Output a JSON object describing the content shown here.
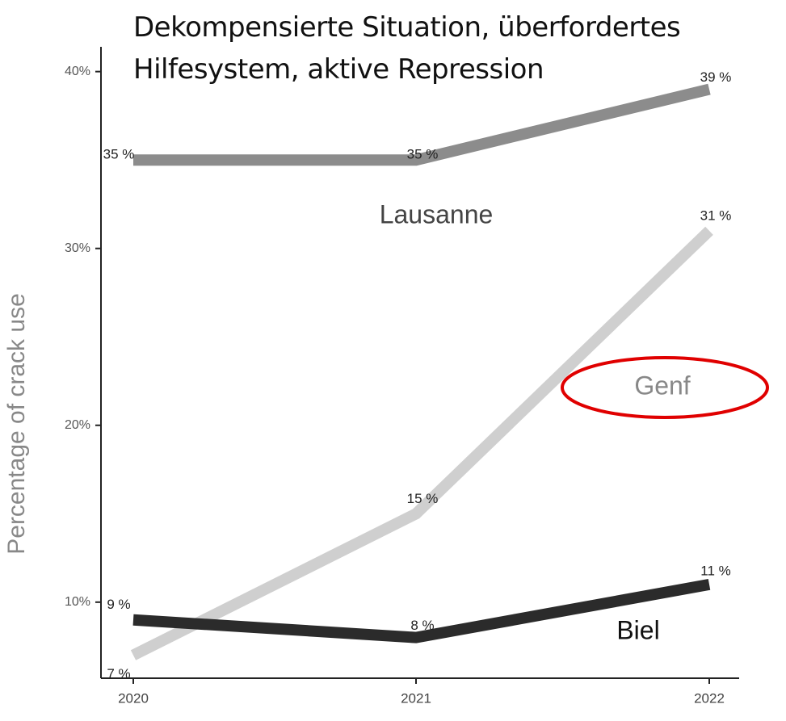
{
  "chart_data": {
    "type": "line",
    "title": "Dekompensierte Situation, überfordertes Hilfesystem, aktive Repression",
    "y_label": "Percentage of crack use",
    "categories": [
      "2020",
      "2021",
      "2022"
    ],
    "series": [
      {
        "name": "Lausanne",
        "color": "#8c8c8c",
        "values": [
          35,
          35,
          39
        ],
        "value_labels": [
          "35 %",
          "35 %",
          "39 %"
        ]
      },
      {
        "name": "Genf",
        "color": "#cfcfcf",
        "values": [
          7,
          15,
          31
        ],
        "value_labels": [
          "7 %",
          "15 %",
          "31 %"
        ]
      },
      {
        "name": "Biel",
        "color": "#2b2b2b",
        "values": [
          9,
          8,
          11
        ],
        "value_labels": [
          "9 %",
          "8 %",
          "11 %"
        ]
      }
    ],
    "ylim": [
      5.7,
      41.4
    ],
    "yticks": [
      {
        "value": 10,
        "label": "10%"
      },
      {
        "value": 20,
        "label": "20%"
      },
      {
        "value": 30,
        "label": "30%"
      },
      {
        "value": 40,
        "label": "40%"
      }
    ]
  }
}
